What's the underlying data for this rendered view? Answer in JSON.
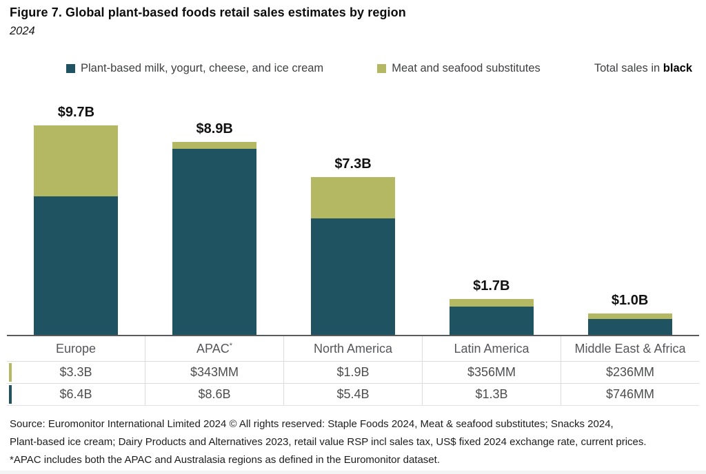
{
  "chart_data": {
    "type": "bar",
    "stacked": true,
    "title": "Figure 7. Global plant-based foods retail sales estimates by region",
    "subtitle": "2024",
    "unit": "US$ billions",
    "categories": [
      "Europe",
      "APAC*",
      "North America",
      "Latin America",
      "Middle East & Africa"
    ],
    "series": [
      {
        "name": "Plant-based milk, yogurt, cheese, and ice cream",
        "color": "#1f5361",
        "values_billions": [
          6.4,
          8.6,
          5.4,
          1.3,
          0.746
        ],
        "labels": [
          "$6.4B",
          "$8.6B",
          "$5.4B",
          "$1.3B",
          "$746MM"
        ]
      },
      {
        "name": "Meat and seafood substitutes",
        "color": "#b4b862",
        "values_billions": [
          3.3,
          0.343,
          1.9,
          0.356,
          0.236
        ],
        "labels": [
          "$3.3B",
          "$343MM",
          "$1.9B",
          "$356MM",
          "$236MM"
        ]
      }
    ],
    "totals": [
      "$9.7B",
      "$8.9B",
      "$7.3B",
      "$1.7B",
      "$1.0B"
    ],
    "totals_billions": [
      9.7,
      8.9,
      7.3,
      1.7,
      1.0
    ],
    "ylim_billions": [
      0,
      10.5
    ],
    "gridlines": false,
    "legend_position": "top",
    "axis_line_color": "#58595b"
  },
  "legend": {
    "note_prefix": "Total sales in ",
    "note_bold": "black"
  },
  "source": {
    "lines": [
      "Source: Euromonitor International Limited 2024 © All rights reserved: Staple Foods 2024, Meat & seafood substitutes; Snacks 2024,",
      "Plant-based ice cream; Dairy Products and Alternatives 2023, retail value RSP incl sales tax, US$ fixed 2024 exchange rate, current prices.",
      "*APAC includes both the APAC and Australasia regions as defined in the Euromonitor dataset."
    ]
  }
}
